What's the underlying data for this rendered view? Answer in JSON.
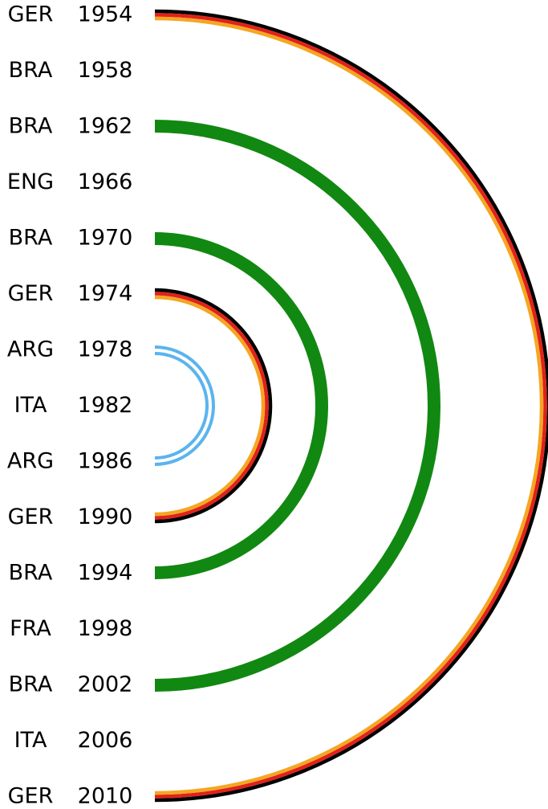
{
  "rows": [
    {
      "team": "GER",
      "year": "1954"
    },
    {
      "team": "BRA",
      "year": "1958"
    },
    {
      "team": "BRA",
      "year": "1962"
    },
    {
      "team": "ENG",
      "year": "1966"
    },
    {
      "team": "BRA",
      "year": "1970"
    },
    {
      "team": "GER",
      "year": "1974"
    },
    {
      "team": "ARG",
      "year": "1978"
    },
    {
      "team": "ITA",
      "year": "1982"
    },
    {
      "team": "ARG",
      "year": "1986"
    },
    {
      "team": "GER",
      "year": "1990"
    },
    {
      "team": "BRA",
      "year": "1994"
    },
    {
      "team": "FRA",
      "year": "1998"
    },
    {
      "team": "BRA",
      "year": "2002"
    },
    {
      "team": "ITA",
      "year": "2006"
    },
    {
      "team": "GER",
      "year": "2010"
    }
  ]
}
